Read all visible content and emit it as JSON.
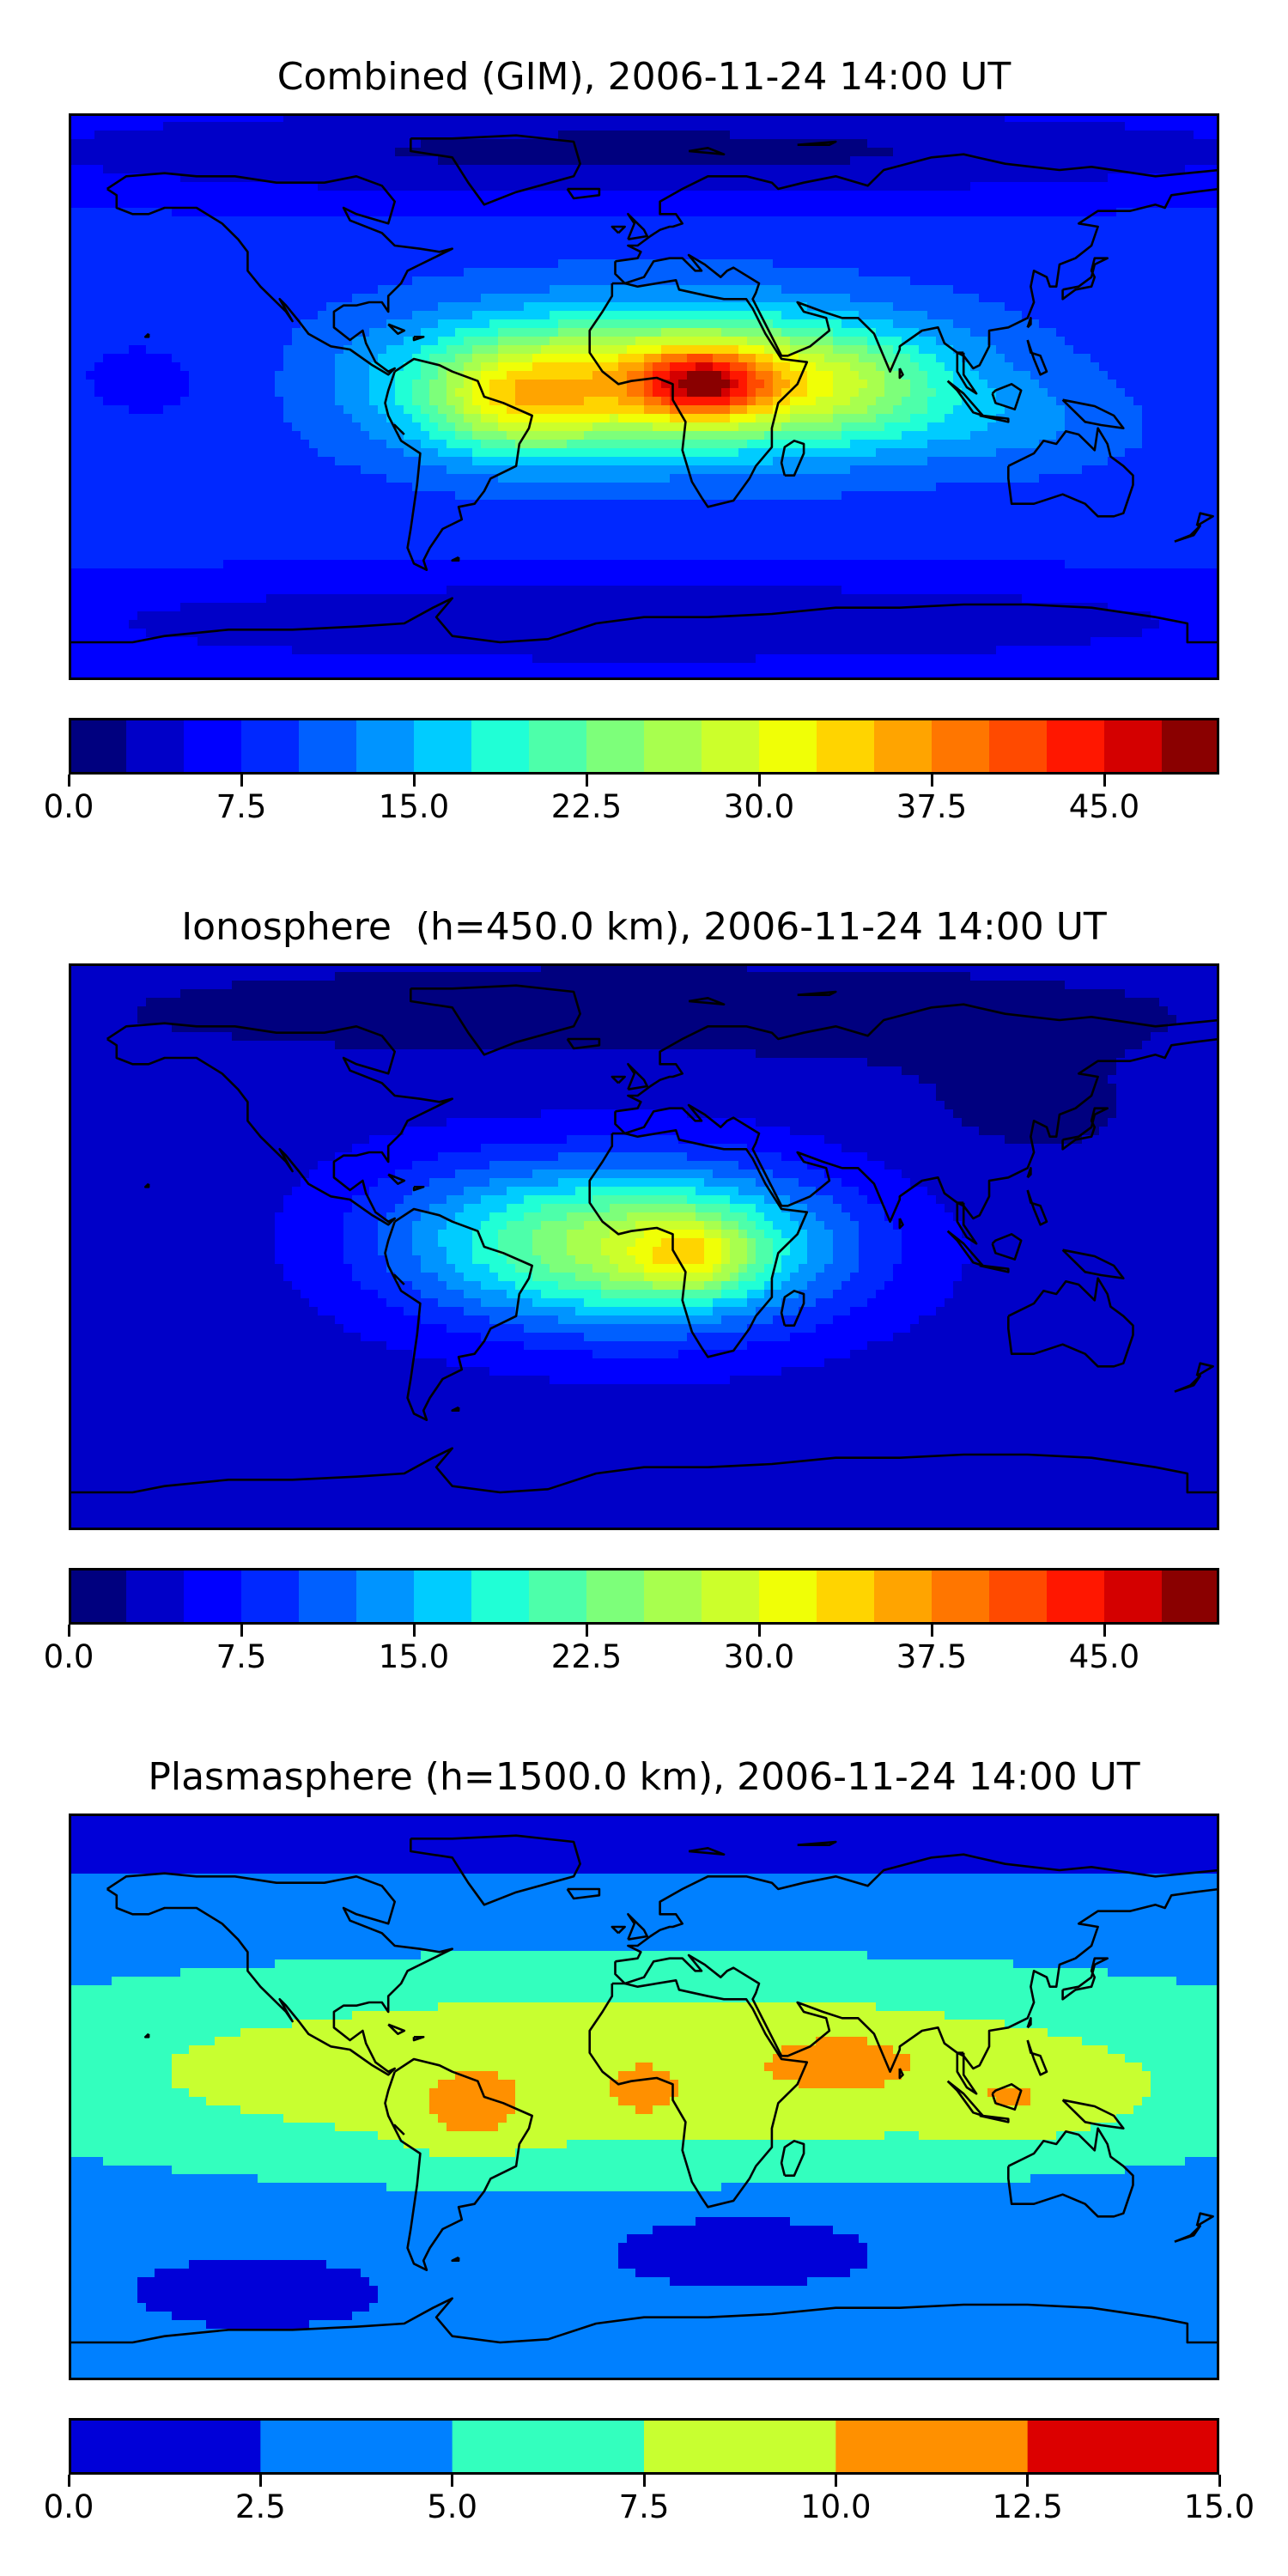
{
  "chart_data": [
    {
      "type": "heatmap",
      "title": "Combined (GIM), 2006-11-24 14:00 UT",
      "colorbar": {
        "min": 0.0,
        "max": 50.0,
        "step": 2.5,
        "tick_labels": [
          "0.0",
          "7.5",
          "15.0",
          "22.5",
          "30.0",
          "37.5",
          "45.0"
        ],
        "tick_values": [
          0.0,
          7.5,
          15.0,
          22.5,
          30.0,
          37.5,
          45.0
        ]
      },
      "colors": [
        "#00007f",
        "#0000c8",
        "#0000ff",
        "#0028ff",
        "#0060ff",
        "#0094ff",
        "#00ccff",
        "#20ffd6",
        "#4dffaa",
        "#7dff7a",
        "#a8ff4e",
        "#ccff2b",
        "#f0ff06",
        "#ffd400",
        "#ffa400",
        "#ff7600",
        "#ff4a00",
        "#ff1700",
        "#d40000",
        "#8a0000"
      ],
      "background_value": 8.8,
      "features": [
        {
          "lon": 5,
          "lat": 5,
          "amp": 23,
          "sx": 55,
          "sy": 16
        },
        {
          "lon": 18,
          "lat": 4,
          "amp": 17,
          "sx": 14,
          "sy": 8
        },
        {
          "lon": -40,
          "lat": -2,
          "amp": 11,
          "sx": 20,
          "sy": 12
        },
        {
          "lon": 60,
          "lat": 3,
          "amp": 7,
          "sx": 25,
          "sy": 12
        },
        {
          "lon": 115,
          "lat": -10,
          "amp": 3,
          "sx": 30,
          "sy": 10
        },
        {
          "lon": 0,
          "lat": 78,
          "amp": -7,
          "sx": 170,
          "sy": 12
        },
        {
          "lon": 0,
          "lat": -72,
          "amp": -6,
          "sx": 170,
          "sy": 12
        },
        {
          "lon": -150,
          "lat": 5,
          "amp": -2,
          "sx": 30,
          "sy": 15
        }
      ]
    },
    {
      "type": "heatmap",
      "title": "Ionosphere  (h=450.0 km), 2006-11-24 14:00 UT",
      "colorbar": {
        "min": 0.0,
        "max": 50.0,
        "step": 2.5,
        "tick_labels": [
          "0.0",
          "7.5",
          "15.0",
          "22.5",
          "30.0",
          "37.5",
          "45.0"
        ],
        "tick_values": [
          0.0,
          7.5,
          15.0,
          22.5,
          30.0,
          37.5,
          45.0
        ]
      },
      "colors": [
        "#00007f",
        "#0000c8",
        "#0000ff",
        "#0028ff",
        "#0060ff",
        "#0094ff",
        "#00ccff",
        "#20ffd6",
        "#4dffaa",
        "#7dff7a",
        "#a8ff4e",
        "#ccff2b",
        "#f0ff06",
        "#ffd400",
        "#ffa400",
        "#ff7600",
        "#ff4a00",
        "#ff1700",
        "#d40000",
        "#8a0000"
      ],
      "background_value": 3.8,
      "features": [
        {
          "lon": 0,
          "lat": 0,
          "amp": 23,
          "sx": 42,
          "sy": 18
        },
        {
          "lon": 15,
          "lat": -3,
          "amp": 9,
          "sx": 13,
          "sy": 8
        },
        {
          "lon": -60,
          "lat": 5,
          "amp": 4,
          "sx": 30,
          "sy": 18
        },
        {
          "lon": 0,
          "lat": 75,
          "amp": -2,
          "sx": 170,
          "sy": 15
        },
        {
          "lon": 120,
          "lat": 40,
          "amp": -1.5,
          "sx": 40,
          "sy": 15
        }
      ]
    },
    {
      "type": "heatmap",
      "title": "Plasmasphere (h=1500.0 km), 2006-11-24 14:00 UT",
      "colorbar": {
        "min": 0.0,
        "max": 15.0,
        "step": 2.5,
        "tick_labels": [
          "0.0",
          "2.5",
          "5.0",
          "7.5",
          "10.0",
          "12.5",
          "15.0"
        ],
        "tick_values": [
          0.0,
          2.5,
          5.0,
          7.5,
          10.0,
          12.5,
          15.0
        ]
      },
      "colors": [
        "#0000d8",
        "#0080ff",
        "#33ffbe",
        "#c8ff30",
        "#ff9000",
        "#dc0000"
      ],
      "background_value": 2.6,
      "features": [
        {
          "lon": 0,
          "lat": 8,
          "amp": 7.2,
          "sx": 170,
          "sy": 26
        },
        {
          "lon": -55,
          "lat": -8,
          "amp": 2.5,
          "sx": 12,
          "sy": 9
        },
        {
          "lon": 120,
          "lat": -2,
          "amp": 2.2,
          "sx": 20,
          "sy": 8
        },
        {
          "lon": 65,
          "lat": 12,
          "amp": 1.8,
          "sx": 16,
          "sy": 7
        },
        {
          "lon": 0,
          "lat": 0,
          "amp": 1.6,
          "sx": 6,
          "sy": 5
        },
        {
          "lon": 30,
          "lat": -45,
          "amp": -2.0,
          "sx": 30,
          "sy": 8
        },
        {
          "lon": -120,
          "lat": -60,
          "amp": -1.6,
          "sx": 20,
          "sy": 6
        },
        {
          "lon": 0,
          "lat": 82,
          "amp": -1.2,
          "sx": 170,
          "sy": 8
        }
      ]
    }
  ]
}
